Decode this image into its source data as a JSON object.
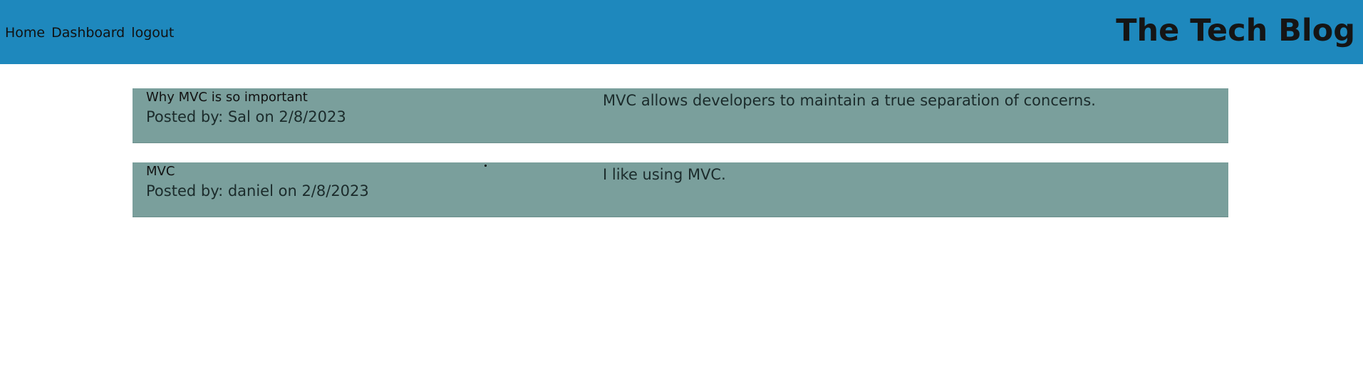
{
  "header": {
    "nav": {
      "home": "Home",
      "dashboard": "Dashboard",
      "logout": "logout"
    },
    "title": "The Tech Blog"
  },
  "posts": [
    {
      "title": "Why MVC is so important",
      "meta": "Posted by: Sal on 2/8/2023",
      "content": "MVC allows developers to maintain a true separation of concerns."
    },
    {
      "title": "MVC",
      "meta": "Posted by: daniel on 2/8/2023",
      "content": "I like using MVC."
    }
  ],
  "colors": {
    "header_background": "#1e88bd",
    "post_background": "#7a9f9c"
  }
}
